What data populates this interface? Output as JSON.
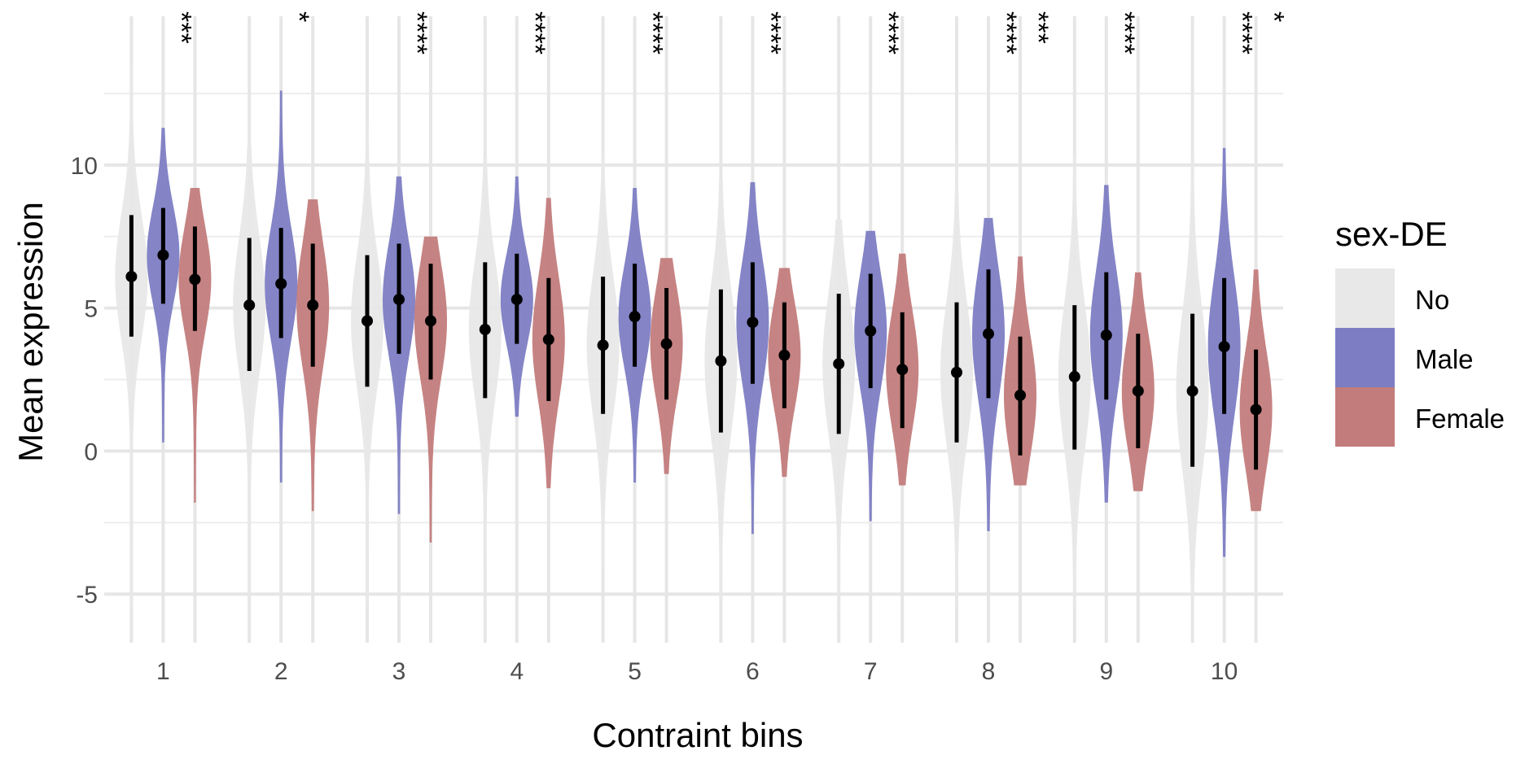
{
  "chart_data": {
    "type": "violin",
    "xlabel": "Contraint bins",
    "ylabel": "Mean expression",
    "ylim": [
      -6.7,
      15.2
    ],
    "y_ticks": [
      -5,
      0,
      5,
      10
    ],
    "y_tick_labels": [
      "-5",
      "0",
      "5",
      "10"
    ],
    "categories": [
      "1",
      "2",
      "3",
      "4",
      "5",
      "6",
      "7",
      "8",
      "9",
      "10"
    ],
    "grid": true,
    "legend": {
      "title": "sex-DE",
      "position": "right",
      "entries": [
        {
          "label": "No",
          "color": "#E8E8E8"
        },
        {
          "label": "Male",
          "color": "#7D7DC4"
        },
        {
          "label": "Female",
          "color": "#C37C7C"
        }
      ]
    },
    "series": [
      {
        "name": "No",
        "color": "#E8E8E8",
        "mean": [
          6.1,
          5.1,
          4.55,
          4.25,
          3.7,
          3.15,
          3.05,
          2.75,
          2.6,
          2.1
        ],
        "lower": [
          4.0,
          2.8,
          2.25,
          1.85,
          1.3,
          0.65,
          0.6,
          0.3,
          0.05,
          -0.55
        ],
        "upper": [
          8.25,
          7.45,
          6.85,
          6.6,
          6.1,
          5.65,
          5.5,
          5.2,
          5.1,
          4.8
        ],
        "min": [
          -5.5,
          -5.4,
          -5.4,
          -5.4,
          -4.0,
          -5.2,
          -5.6,
          -5.4,
          -5.5,
          -5.2
        ],
        "max": [
          13.5,
          10.7,
          11.6,
          10.3,
          10.3,
          9.5,
          8.1,
          10.7,
          10.3,
          10.3
        ],
        "significance": [
          "",
          "",
          "",
          "",
          "",
          "",
          "",
          "",
          "",
          ""
        ]
      },
      {
        "name": "Male",
        "color": "#7D7DC4",
        "mean": [
          6.85,
          5.85,
          5.3,
          5.3,
          4.7,
          4.5,
          4.2,
          4.1,
          4.05,
          3.65
        ],
        "lower": [
          5.15,
          3.95,
          3.4,
          3.75,
          2.95,
          2.35,
          2.2,
          1.85,
          1.8,
          1.3
        ],
        "upper": [
          8.5,
          7.8,
          7.25,
          6.9,
          6.55,
          6.6,
          6.2,
          6.35,
          6.25,
          6.05
        ],
        "min": [
          0.3,
          -1.1,
          -2.2,
          1.2,
          -1.1,
          -2.9,
          -2.45,
          -2.8,
          -1.8,
          -3.7
        ],
        "max": [
          11.3,
          12.6,
          9.6,
          9.6,
          9.2,
          9.4,
          7.7,
          8.15,
          9.3,
          10.6
        ],
        "significance": [
          "***",
          "*",
          "****",
          "****",
          "****",
          "****",
          "****",
          "****",
          "****",
          "****"
        ]
      },
      {
        "name": "Female",
        "color": "#C37C7C",
        "mean": [
          6.0,
          5.1,
          4.55,
          3.9,
          3.75,
          3.35,
          2.85,
          1.95,
          2.1,
          1.45
        ],
        "lower": [
          4.2,
          2.95,
          2.5,
          1.75,
          1.8,
          1.5,
          0.8,
          -0.15,
          0.1,
          -0.65
        ],
        "upper": [
          7.85,
          7.25,
          6.55,
          6.05,
          5.7,
          5.2,
          4.85,
          4.0,
          4.1,
          3.55
        ],
        "min": [
          -1.8,
          -2.1,
          -3.2,
          -1.3,
          -0.8,
          -0.9,
          -1.2,
          -1.2,
          -1.4,
          -2.1
        ],
        "max": [
          9.2,
          8.8,
          7.5,
          8.85,
          6.75,
          6.4,
          6.9,
          6.8,
          6.25,
          6.35
        ],
        "significance": [
          "",
          "",
          "",
          "",
          "",
          "",
          "",
          "***",
          "",
          "*"
        ]
      }
    ]
  }
}
